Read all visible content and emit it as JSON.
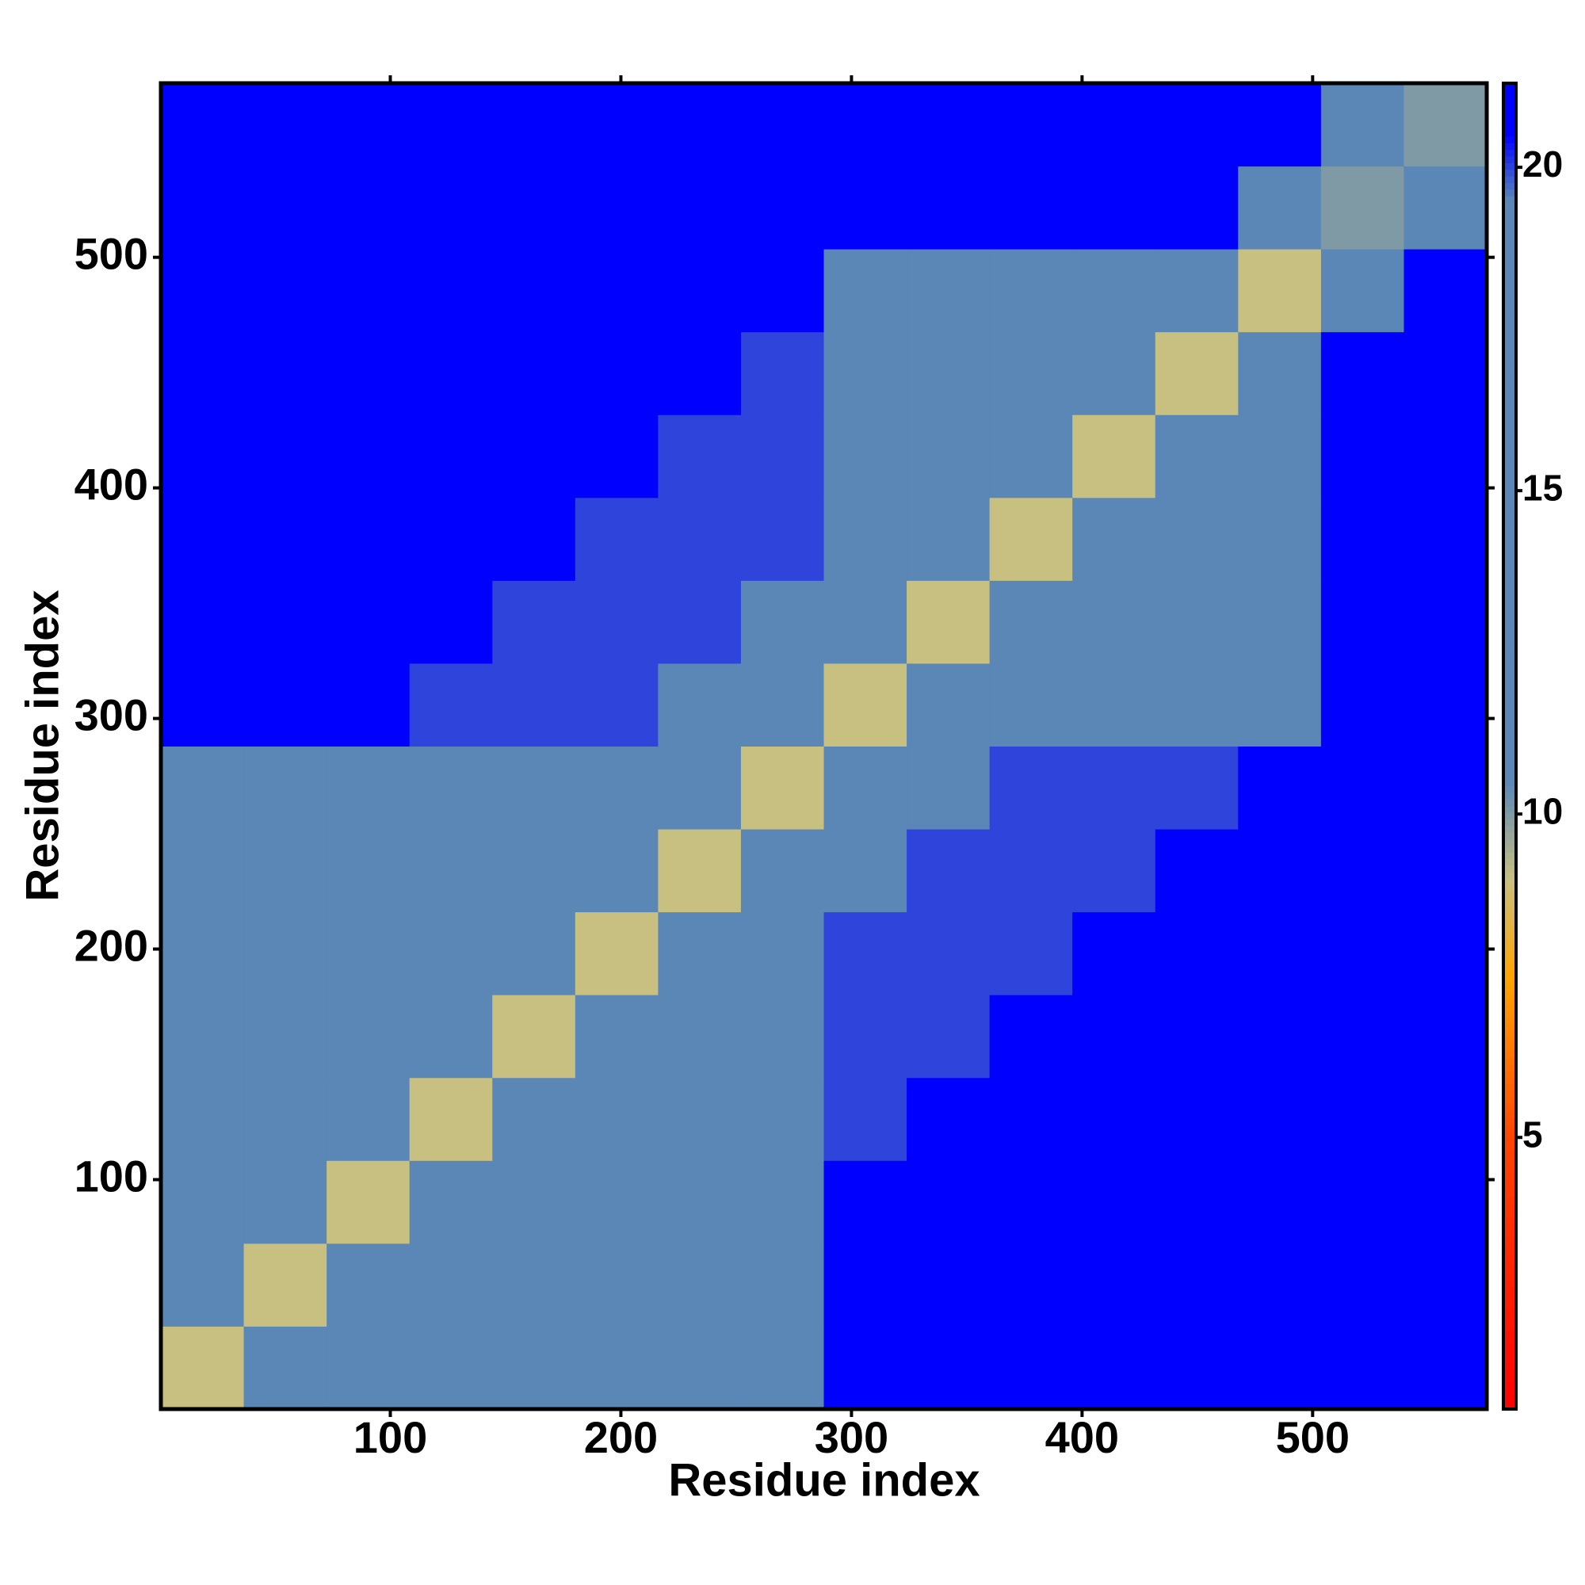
{
  "chart_data": {
    "type": "heatmap",
    "x_label": "Residue index",
    "y_label": "Residue index",
    "xlim": [
      0.5,
      575.5
    ],
    "ylim": [
      0.5,
      575.5
    ],
    "xticks": [
      100,
      200,
      300,
      400,
      500
    ],
    "yticks": [
      100,
      200,
      300,
      400,
      500
    ],
    "z": [
      [
        9,
        13,
        15,
        16,
        17,
        17,
        18,
        18,
        21,
        21,
        21,
        21,
        21,
        21,
        21,
        21
      ],
      [
        13,
        9,
        13,
        15,
        16,
        17,
        17,
        18,
        21,
        21,
        21,
        21,
        21,
        21,
        21,
        21
      ],
      [
        15,
        13,
        9,
        13,
        15,
        16,
        17,
        17,
        21,
        21,
        21,
        21,
        21,
        21,
        21,
        21
      ],
      [
        16,
        15,
        13,
        9,
        13,
        15,
        16,
        17,
        20,
        21,
        21,
        21,
        21,
        21,
        21,
        21
      ],
      [
        17,
        16,
        15,
        13,
        9,
        13,
        15,
        16,
        20,
        20,
        21,
        21,
        21,
        21,
        21,
        21
      ],
      [
        17,
        17,
        16,
        15,
        13,
        9,
        13,
        15,
        20,
        20,
        20,
        21,
        21,
        21,
        21,
        21
      ],
      [
        18,
        17,
        17,
        16,
        15,
        13,
        9,
        13,
        19,
        20,
        20,
        20,
        21,
        21,
        21,
        21
      ],
      [
        18,
        18,
        17,
        17,
        16,
        15,
        13,
        9,
        17,
        19,
        20,
        20,
        20,
        21,
        21,
        21
      ],
      [
        21,
        21,
        21,
        20,
        20,
        20,
        19,
        17,
        9,
        13,
        15,
        16,
        17,
        18,
        21,
        21
      ],
      [
        21,
        21,
        21,
        21,
        20,
        20,
        20,
        19,
        13,
        9,
        13,
        15,
        16,
        17,
        21,
        21
      ],
      [
        21,
        21,
        21,
        21,
        21,
        20,
        20,
        20,
        15,
        13,
        9,
        13,
        15,
        16,
        21,
        21
      ],
      [
        21,
        21,
        21,
        21,
        21,
        21,
        20,
        20,
        16,
        15,
        13,
        9,
        13,
        15,
        21,
        21
      ],
      [
        21,
        21,
        21,
        21,
        21,
        21,
        21,
        20,
        17,
        16,
        15,
        13,
        9,
        13,
        21,
        21
      ],
      [
        21,
        21,
        21,
        21,
        21,
        21,
        21,
        21,
        18,
        17,
        16,
        15,
        13,
        9,
        15,
        21
      ],
      [
        21,
        21,
        21,
        21,
        21,
        21,
        21,
        21,
        21,
        21,
        21,
        21,
        21,
        15,
        10,
        15
      ],
      [
        21,
        21,
        21,
        21,
        21,
        21,
        21,
        21,
        21,
        21,
        21,
        21,
        21,
        21,
        15,
        10
      ]
    ],
    "zlim": [
      0.8,
      21.3
    ],
    "zticks": [
      5,
      10,
      15,
      20
    ],
    "colorscale": [
      {
        "value": 0.8,
        "color": "#ff0000"
      },
      {
        "value": 5,
        "color": "#ff4500"
      },
      {
        "value": 7.5,
        "color": "#ffa500"
      },
      {
        "value": 9,
        "color": "#c8c080"
      },
      {
        "value": 10.5,
        "color": "#5b87b7"
      },
      {
        "value": 19.5,
        "color": "#5b87b7"
      },
      {
        "value": 20.5,
        "color": "#0000ff"
      },
      {
        "value": 21.3,
        "color": "#0000ff"
      }
    ]
  }
}
